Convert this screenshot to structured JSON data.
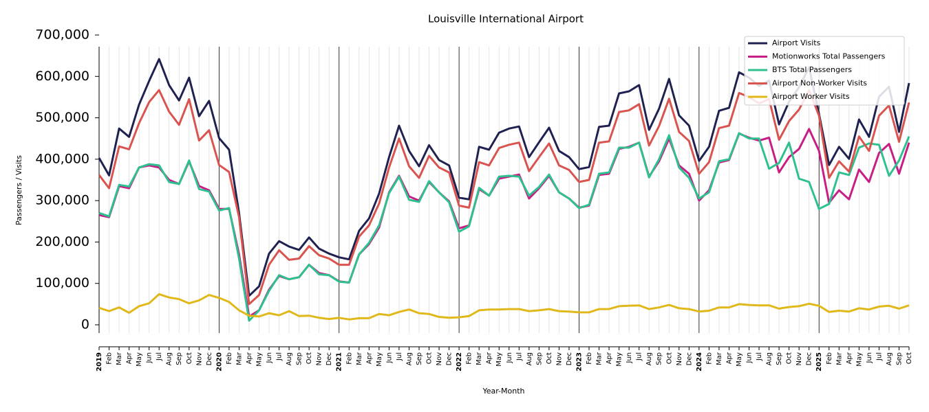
{
  "chart_data": {
    "type": "line",
    "title": "Louisville International Airport",
    "y_label": "Passengers / Visits",
    "x_label": "Year-Month",
    "categories": [
      "2019",
      "Feb",
      "Mar",
      "Apr",
      "May",
      "Jun",
      "Jul",
      "Aug",
      "Sep",
      "Oct",
      "Nov",
      "Dec",
      "2020",
      "Feb",
      "Mar",
      "Apr",
      "May",
      "Jun",
      "Jul",
      "Aug",
      "Sep",
      "Oct",
      "Nov",
      "Dec",
      "2021",
      "Feb",
      "Mar",
      "Apr",
      "May",
      "Jun",
      "Jul",
      "Aug",
      "Sep",
      "Oct",
      "Nov",
      "Dec",
      "2022",
      "Feb",
      "Mar",
      "Apr",
      "May",
      "Jun",
      "Jul",
      "Aug",
      "Sep",
      "Oct",
      "Nov",
      "Dec",
      "2023",
      "Feb",
      "Mar",
      "Apr",
      "May",
      "Jun",
      "Jul",
      "Aug",
      "Sep",
      "Oct",
      "Nov",
      "Dec",
      "2024",
      "Feb",
      "Mar",
      "Apr",
      "May",
      "Jun",
      "Jul",
      "Aug",
      "Sep",
      "Oct",
      "Nov",
      "Dec",
      "2025",
      "Feb",
      "Mar",
      "Apr",
      "May",
      "Jun",
      "Jul",
      "Aug",
      "Sep",
      "Oct"
    ],
    "series": [
      {
        "name": "Airport Visits",
        "color": "#1f2150",
        "values": [
          403000,
          361000,
          474000,
          454000,
          532000,
          589000,
          642000,
          579000,
          542000,
          597000,
          504000,
          541000,
          451000,
          423000,
          270000,
          70000,
          93000,
          172000,
          202000,
          189000,
          181000,
          211000,
          184000,
          172000,
          163000,
          158000,
          227000,
          257000,
          317000,
          405000,
          481000,
          420000,
          383000,
          434000,
          398000,
          385000,
          307000,
          303000,
          430000,
          423000,
          464000,
          474000,
          479000,
          405000,
          441000,
          476000,
          420000,
          405000,
          376000,
          381000,
          478000,
          481000,
          559000,
          564000,
          579000,
          471000,
          522000,
          594000,
          506000,
          481000,
          396000,
          430000,
          517000,
          524000,
          610000,
          597000,
          577000,
          590000,
          484000,
          539000,
          574000,
          622000,
          509000,
          386000,
          430000,
          401000,
          496000,
          454000,
          551000,
          575000,
          466000,
          584000
        ]
      },
      {
        "name": "Motionworks Total Passengers",
        "color": "#c81d86",
        "values": [
          265000,
          260000,
          335000,
          330000,
          380000,
          385000,
          380000,
          350000,
          340000,
          395000,
          335000,
          325000,
          280000,
          280000,
          170000,
          20000,
          35000,
          85000,
          118000,
          110000,
          115000,
          145000,
          125000,
          120000,
          105000,
          102000,
          170000,
          195000,
          235000,
          320000,
          360000,
          310000,
          300000,
          345000,
          320000,
          298000,
          233000,
          240000,
          328000,
          312000,
          353000,
          358000,
          363000,
          305000,
          330000,
          360000,
          320000,
          305000,
          283000,
          288000,
          362000,
          365000,
          425000,
          430000,
          440000,
          358000,
          395000,
          450000,
          385000,
          365000,
          300000,
          325000,
          392000,
          398000,
          462000,
          452000,
          445000,
          452000,
          368000,
          405000,
          425000,
          473000,
          420000,
          295000,
          325000,
          303000,
          375000,
          345000,
          415000,
          437000,
          365000,
          440000
        ]
      },
      {
        "name": "BTS Total Passengers",
        "color": "#2ec08f",
        "values": [
          270000,
          262000,
          338000,
          334000,
          380000,
          388000,
          385000,
          345000,
          340000,
          397000,
          328000,
          322000,
          276000,
          282000,
          160000,
          10000,
          35000,
          82000,
          120000,
          110000,
          115000,
          145000,
          122000,
          120000,
          104000,
          102000,
          170000,
          198000,
          240000,
          318000,
          358000,
          302000,
          297000,
          347000,
          320000,
          296000,
          225000,
          238000,
          331000,
          312000,
          358000,
          360000,
          358000,
          312000,
          333000,
          363000,
          320000,
          305000,
          282000,
          290000,
          365000,
          368000,
          428000,
          428000,
          440000,
          356000,
          400000,
          458000,
          380000,
          355000,
          305000,
          320000,
          395000,
          400000,
          463000,
          450000,
          450000,
          377000,
          391000,
          440000,
          353000,
          345000,
          280000,
          292000,
          368000,
          362000,
          428000,
          438000,
          435000,
          360000,
          397000,
          455000
        ]
      },
      {
        "name": "Airport Non-Worker Visits",
        "color": "#d9534f",
        "values": [
          362000,
          330000,
          431000,
          424000,
          487000,
          538000,
          567000,
          515000,
          483000,
          545000,
          445000,
          470000,
          386000,
          369000,
          260000,
          50000,
          72000,
          145000,
          180000,
          157000,
          160000,
          190000,
          168000,
          160000,
          145000,
          145000,
          213000,
          240000,
          293000,
          380000,
          450000,
          383000,
          355000,
          408000,
          380000,
          368000,
          288000,
          283000,
          393000,
          385000,
          427000,
          435000,
          440000,
          371000,
          405000,
          438000,
          385000,
          374000,
          345000,
          350000,
          440000,
          443000,
          514000,
          518000,
          533000,
          433000,
          480000,
          546000,
          466000,
          444000,
          365000,
          393000,
          475000,
          481000,
          560000,
          550000,
          535000,
          545000,
          447000,
          492000,
          520000,
          567000,
          505000,
          355000,
          395000,
          370000,
          455000,
          420000,
          505000,
          530000,
          442000,
          537000
        ]
      },
      {
        "name": "Airport Worker Visits",
        "color": "#e0b81a",
        "values": [
          41000,
          33000,
          42000,
          29000,
          45000,
          52000,
          74000,
          66000,
          62000,
          52000,
          59000,
          72000,
          65000,
          55000,
          35000,
          22000,
          20000,
          28000,
          23000,
          33000,
          21000,
          22000,
          17000,
          14000,
          17000,
          13000,
          16000,
          16000,
          26000,
          23000,
          31000,
          37000,
          28000,
          26000,
          19000,
          17000,
          18000,
          21000,
          35000,
          37000,
          37000,
          38000,
          38000,
          33000,
          35000,
          38000,
          33000,
          32000,
          30000,
          30000,
          38000,
          38000,
          45000,
          46000,
          47000,
          38000,
          42000,
          48000,
          40000,
          38000,
          32000,
          34000,
          42000,
          42000,
          50000,
          48000,
          47000,
          47000,
          39000,
          43000,
          45000,
          51000,
          46000,
          31000,
          34000,
          32000,
          40000,
          37000,
          44000,
          46000,
          39000,
          47000
        ]
      }
    ],
    "ylim": [
      0,
      700000
    ],
    "yticks": [
      {
        "value": 0,
        "label": "0"
      },
      {
        "value": 100000,
        "label": "100,000"
      },
      {
        "value": 200000,
        "label": "200,000"
      },
      {
        "value": 300000,
        "label": "300,000"
      },
      {
        "value": 400000,
        "label": "400,000"
      },
      {
        "value": 500000,
        "label": "500,000"
      },
      {
        "value": 600000,
        "label": "600,000"
      },
      {
        "value": 700000,
        "label": "700,000"
      }
    ],
    "legend": "upper right",
    "grid": true
  }
}
